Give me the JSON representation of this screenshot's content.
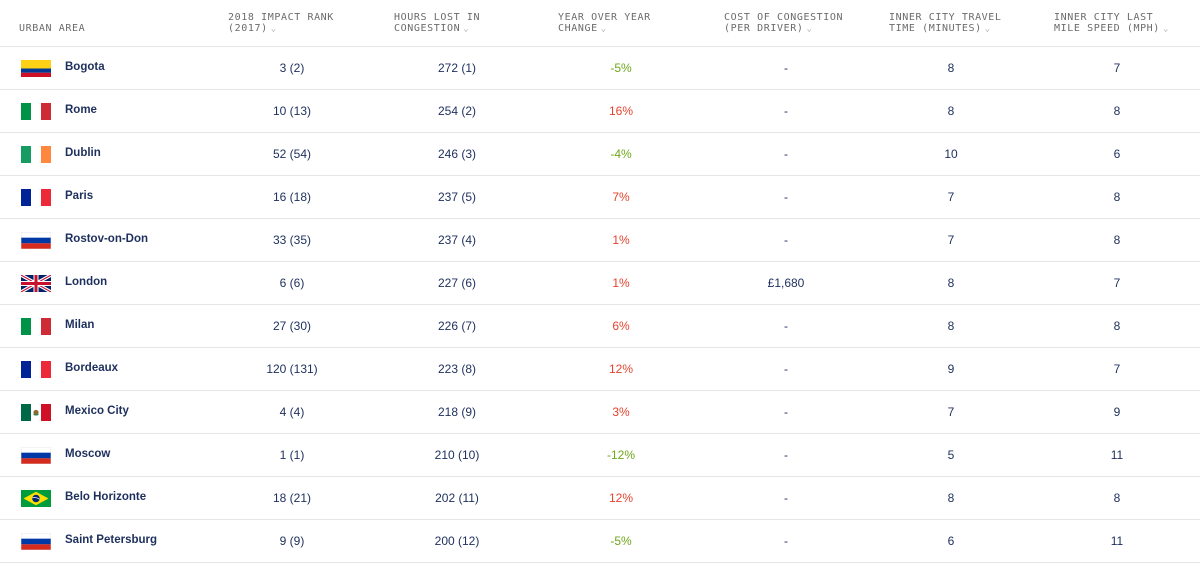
{
  "headers": {
    "urban_area": "URBAN AREA",
    "impact_rank": "2018 IMPACT RANK\n(2017)",
    "hours_lost": "HOURS LOST IN\nCONGESTION",
    "yoy_change": "YEAR OVER YEAR\nCHANGE",
    "cost": "COST OF CONGESTION\n(PER DRIVER)",
    "travel_time": "INNER CITY TRAVEL\nTIME (MINUTES)",
    "last_mile": "INNER CITY LAST\nMILE SPEED (MPH)",
    "sort_glyph": "⌄"
  },
  "rows": [
    {
      "flag": "colombia",
      "city": "Bogota",
      "rank": "3 (2)",
      "hours": "272 (1)",
      "yoy": "-5%",
      "cost": "-",
      "time": "8",
      "speed": "7"
    },
    {
      "flag": "italy",
      "city": "Rome",
      "rank": "10 (13)",
      "hours": "254 (2)",
      "yoy": "16%",
      "cost": "-",
      "time": "8",
      "speed": "8"
    },
    {
      "flag": "ireland",
      "city": "Dublin",
      "rank": "52 (54)",
      "hours": "246 (3)",
      "yoy": "-4%",
      "cost": "-",
      "time": "10",
      "speed": "6"
    },
    {
      "flag": "france",
      "city": "Paris",
      "rank": "16 (18)",
      "hours": "237 (5)",
      "yoy": "7%",
      "cost": "-",
      "time": "7",
      "speed": "8"
    },
    {
      "flag": "russia",
      "city": "Rostov-on-Don",
      "rank": "33 (35)",
      "hours": "237 (4)",
      "yoy": "1%",
      "cost": "-",
      "time": "7",
      "speed": "8"
    },
    {
      "flag": "uk",
      "city": "London",
      "rank": "6 (6)",
      "hours": "227 (6)",
      "yoy": "1%",
      "cost": "£1,680",
      "time": "8",
      "speed": "7"
    },
    {
      "flag": "italy",
      "city": "Milan",
      "rank": "27 (30)",
      "hours": "226 (7)",
      "yoy": "6%",
      "cost": "-",
      "time": "8",
      "speed": "8"
    },
    {
      "flag": "france",
      "city": "Bordeaux",
      "rank": "120 (131)",
      "hours": "223 (8)",
      "yoy": "12%",
      "cost": "-",
      "time": "9",
      "speed": "7"
    },
    {
      "flag": "mexico",
      "city": "Mexico City",
      "rank": "4 (4)",
      "hours": "218 (9)",
      "yoy": "3%",
      "cost": "-",
      "time": "7",
      "speed": "9"
    },
    {
      "flag": "russia",
      "city": "Moscow",
      "rank": "1 (1)",
      "hours": "210 (10)",
      "yoy": "-12%",
      "cost": "-",
      "time": "5",
      "speed": "11"
    },
    {
      "flag": "brazil",
      "city": "Belo Horizonte",
      "rank": "18 (21)",
      "hours": "202 (11)",
      "yoy": "12%",
      "cost": "-",
      "time": "8",
      "speed": "8"
    },
    {
      "flag": "russia",
      "city": "Saint Petersburg",
      "rank": "9 (9)",
      "hours": "200 (12)",
      "yoy": "-5%",
      "cost": "-",
      "time": "6",
      "speed": "11"
    }
  ],
  "colors": {
    "text": "#1d2f5c",
    "negative_change": "#6ea61a",
    "positive_change": "#e5432e",
    "header_text": "#6b6b6b",
    "divider": "#e6e6e6"
  }
}
